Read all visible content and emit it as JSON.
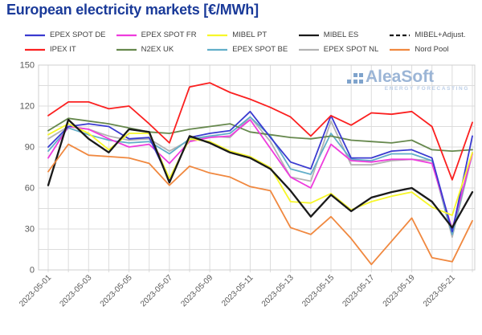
{
  "title": {
    "text": "European electricity markets [€/MWh]",
    "color": "#1a3a99"
  },
  "watermark": {
    "brand": "AleaSoft",
    "tagline": "ENERGY FORECASTING",
    "brand_color": "#9bb5d6",
    "tagline_color": "#bccfe8",
    "dots_color": "#7fa3cc"
  },
  "axis": {
    "y_tick_labels": [
      "0",
      "30",
      "60",
      "90",
      "120",
      "150"
    ],
    "x_tick_labels": [
      "2023-05-01",
      "2023-05-03",
      "2023-05-05",
      "2023-05-07",
      "2023-05-09",
      "2023-05-11",
      "2023-05-13",
      "2023-05-15",
      "2023-05-17",
      "2023-05-19",
      "2023-05-21"
    ],
    "label_color": "#595959",
    "grid_color": "#dcdcdc"
  },
  "chart_data": {
    "type": "line",
    "title": "European electricity markets [€/MWh]",
    "xlabel": "",
    "ylabel": "€/MWh",
    "ylim": [
      0,
      150
    ],
    "y_label_step": 30,
    "y_grid_step": 15,
    "grid": true,
    "legend_position": "top",
    "x": [
      "2023-05-01",
      "2023-05-02",
      "2023-05-03",
      "2023-05-04",
      "2023-05-05",
      "2023-05-06",
      "2023-05-07",
      "2023-05-08",
      "2023-05-09",
      "2023-05-10",
      "2023-05-11",
      "2023-05-12",
      "2023-05-13",
      "2023-05-14",
      "2023-05-15",
      "2023-05-16",
      "2023-05-17",
      "2023-05-18",
      "2023-05-19",
      "2023-05-20",
      "2023-05-21",
      "2023-05-22"
    ],
    "series": [
      {
        "name": "EPEX SPOT DE",
        "color": "#3a3ad0",
        "dash": null,
        "values": [
          90,
          105,
          107,
          105,
          96,
          97,
          66,
          97,
          100,
          102,
          116,
          97,
          79,
          74,
          113,
          82,
          82,
          87,
          88,
          82,
          28,
          98
        ]
      },
      {
        "name": "EPEX SPOT FR",
        "color": "#ee3cdd",
        "dash": null,
        "values": [
          82,
          105,
          103,
          96,
          90,
          92,
          78,
          94,
          97,
          98,
          110,
          89,
          68,
          60,
          92,
          80,
          79,
          81,
          81,
          78,
          30,
          85
        ]
      },
      {
        "name": "MIBEL PT",
        "color": "#f7f72a",
        "dash": null,
        "values": [
          99,
          107,
          100,
          88,
          100,
          100,
          67,
          96,
          94,
          87,
          83,
          75,
          50,
          49,
          56,
          44,
          50,
          54,
          57,
          46,
          40,
          86
        ]
      },
      {
        "name": "MIBEL ES",
        "color": "#1a1a1a",
        "dash": null,
        "values": [
          62,
          110,
          96,
          86,
          103,
          101,
          64,
          98,
          93,
          86,
          82,
          74,
          58,
          39,
          55,
          43,
          53,
          57,
          60,
          50,
          31,
          57
        ]
      },
      {
        "name": "MIBEL+Adjust.",
        "color": "#1a1a1a",
        "dash": "5,3",
        "values": [
          62,
          110,
          96,
          86,
          103,
          101,
          64,
          98,
          93,
          86,
          82,
          74,
          58,
          39,
          55,
          43,
          53,
          57,
          60,
          50,
          31,
          57
        ]
      },
      {
        "name": "IPEX IT",
        "color": "#fb2020",
        "dash": null,
        "values": [
          113,
          123,
          123,
          118,
          120,
          107,
          93,
          134,
          137,
          130,
          125,
          119,
          112,
          98,
          113,
          106,
          115,
          114,
          116,
          105,
          66,
          108
        ]
      },
      {
        "name": "N2EX UK",
        "color": "#66884d",
        "dash": null,
        "values": [
          102,
          111,
          109,
          107,
          104,
          101,
          100,
          103,
          105,
          107,
          101,
          99,
          97,
          96,
          98,
          95,
          94,
          93,
          95,
          88,
          87,
          88
        ]
      },
      {
        "name": "EPEX SPOT BE",
        "color": "#62aec9",
        "dash": null,
        "values": [
          87,
          104,
          99,
          95,
          93,
          94,
          85,
          96,
          98,
          100,
          112,
          98,
          74,
          70,
          100,
          81,
          80,
          85,
          85,
          80,
          26,
          86
        ]
      },
      {
        "name": "EPEX SPOT NL",
        "color": "#b3b3b3",
        "dash": null,
        "values": [
          96,
          105,
          103,
          98,
          95,
          96,
          87,
          95,
          98,
          97,
          112,
          94,
          68,
          65,
          109,
          77,
          77,
          80,
          81,
          80,
          24,
          85
        ]
      },
      {
        "name": "Nord Pool",
        "color": "#f0883f",
        "dash": null,
        "values": [
          72,
          92,
          84,
          83,
          82,
          78,
          62,
          76,
          71,
          68,
          61,
          58,
          31,
          26,
          39,
          23,
          4,
          21,
          38,
          9,
          6,
          36
        ]
      }
    ],
    "z_order": [
      8,
      7,
      6,
      1,
      0,
      2,
      4,
      3,
      9,
      5
    ]
  }
}
